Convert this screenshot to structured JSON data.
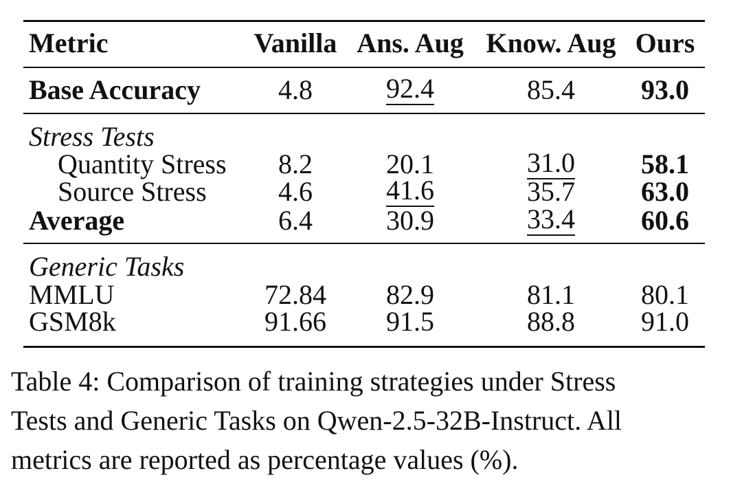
{
  "table": {
    "headers": [
      "Metric",
      "Vanilla",
      "Ans. Aug",
      "Know. Aug",
      "Ours"
    ],
    "base_row": {
      "label": "Base Accuracy",
      "values": [
        "4.8",
        "92.4",
        "85.4",
        "93.0"
      ]
    },
    "stress_section": "Stress Tests",
    "stress_rows": [
      {
        "label": "Quantity Stress",
        "values": [
          "8.2",
          "20.1",
          "31.0",
          "58.1"
        ]
      },
      {
        "label": "Source Stress",
        "values": [
          "4.6",
          "41.6",
          "35.7",
          "63.0"
        ]
      },
      {
        "label": "Average",
        "values": [
          "6.4",
          "30.9",
          "33.4",
          "60.6"
        ]
      }
    ],
    "generic_section": "Generic Tasks",
    "generic_rows": [
      {
        "label": "MMLU",
        "values": [
          "72.84",
          "82.9",
          "81.1",
          "80.1"
        ]
      },
      {
        "label": "GSM8k",
        "values": [
          "91.66",
          "91.5",
          "88.8",
          "91.0"
        ]
      }
    ]
  },
  "caption": {
    "line1": "Table 4: Comparison of training strategies under Stress",
    "line2": "Tests and Generic Tasks on Qwen-2.5-32B-Instruct. All",
    "line3": "metrics are reported as percentage values (%)."
  }
}
